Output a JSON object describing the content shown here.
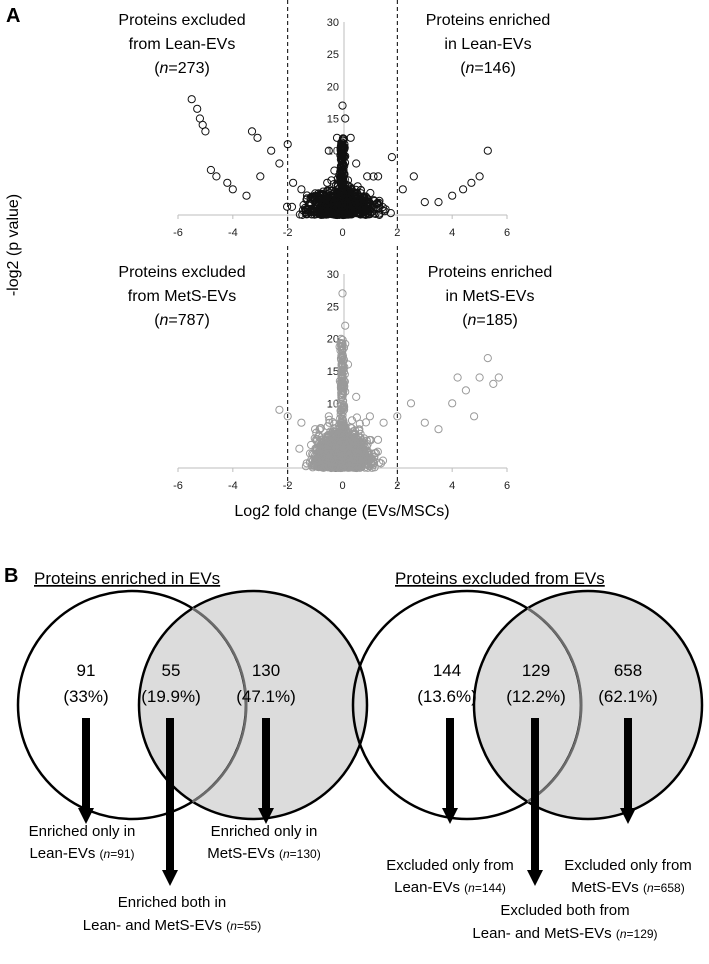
{
  "panel_a": {
    "letter": "A",
    "ylabel": "-log2 (p value)",
    "xlabel": "Log2 fold change (EVs/MSCs)",
    "top": {
      "left_annotation": [
        "Proteins excluded",
        "from Lean-EVs",
        "273"
      ],
      "right_annotation": [
        "Proteins enriched",
        "in Lean-EVs",
        "146"
      ]
    },
    "bottom": {
      "left_annotation": [
        "Proteins excluded",
        "from MetS-EVs",
        "787"
      ],
      "right_annotation": [
        "Proteins enriched",
        "in MetS-EVs",
        "185"
      ]
    },
    "n_prefix": "n",
    "n_eq": "=",
    "paren_open": "(",
    "paren_close": ")"
  },
  "panel_b": {
    "letter": "B",
    "left_venn": {
      "title": "Proteins enriched in EVs",
      "left_only": [
        "91",
        "(33%)"
      ],
      "both": [
        "55",
        "(19.9%)"
      ],
      "right_only": [
        "130",
        "(47.1%)"
      ],
      "cap_left": [
        "Enriched only in",
        "Lean-EVs ",
        "n",
        "=91)"
      ],
      "cap_right": [
        "Enriched only in",
        "MetS-EVs ",
        "n",
        "=130)"
      ],
      "cap_both": [
        "Enriched both in",
        "Lean- and MetS-EVs ",
        "n",
        "=55)"
      ]
    },
    "right_venn": {
      "title": "Proteins excluded from EVs",
      "left_only": [
        "144",
        "(13.6%)"
      ],
      "both": [
        "129",
        "(12.2%)"
      ],
      "right_only": [
        "658",
        "(62.1%)"
      ],
      "cap_left": [
        "Excluded only from",
        "Lean-EVs ",
        "n",
        "=144)"
      ],
      "cap_right": [
        "Excluded only from",
        "MetS-EVs ",
        "n",
        "=658)"
      ],
      "cap_both": [
        "Excluded both from",
        "Lean- and MetS-EVs ",
        "n",
        "=129)"
      ]
    }
  },
  "colors": {
    "lean_points": "#111111",
    "mets_points": "#9a9a9a",
    "mets_fill": "#dcdcdc",
    "axis": "#bdbdbd"
  },
  "chart_data": [
    {
      "type": "scatter",
      "series": [
        {
          "name": "Lean-EVs",
          "x": [
            -5.5,
            -5.3,
            -5.2,
            -5.1,
            -5.0,
            -4.8,
            -4.6,
            -4.2,
            -4.0,
            -3.5,
            -3.3,
            -3.1,
            -3.0,
            -2.6,
            -2.3,
            -2.0,
            -1.8,
            -1.5,
            -1.0,
            -0.5,
            -0.2,
            0.0,
            0.1,
            0.3,
            0.5,
            0.9,
            1.3,
            1.8,
            2.2,
            2.6,
            3.0,
            3.5,
            4.0,
            4.4,
            4.7,
            5.0,
            5.3
          ],
          "y": [
            18,
            16.5,
            15,
            14,
            13,
            7,
            6,
            5,
            4,
            3,
            13,
            12,
            6,
            10,
            8,
            11,
            5,
            4,
            3,
            10,
            12,
            17,
            15,
            12,
            8,
            6,
            6,
            9,
            4,
            6,
            2,
            2,
            3,
            4,
            5,
            6,
            10
          ]
        }
      ],
      "xlim": [
        -6,
        6
      ],
      "ylim": [
        0,
        30
      ],
      "xticks": [
        "-6",
        "-4",
        "-2",
        "0",
        "2",
        "4",
        "6"
      ],
      "yticks": [
        "0",
        "5",
        "10",
        "15",
        "20",
        "25",
        "30"
      ],
      "threshold_lines_x": [
        -2,
        2
      ]
    },
    {
      "type": "scatter",
      "series": [
        {
          "name": "MetS-EVs",
          "x": [
            -2.3,
            -2.0,
            -1.5,
            -1.0,
            -0.5,
            -0.2,
            0.0,
            0.1,
            0.2,
            0.5,
            1.0,
            1.5,
            2.0,
            2.5,
            3.0,
            3.5,
            4.0,
            4.2,
            4.5,
            4.8,
            5.0,
            5.3,
            5.5,
            5.7
          ],
          "y": [
            9,
            8,
            7,
            6,
            8,
            10,
            27,
            22,
            16,
            11,
            8,
            7,
            8,
            10,
            7,
            6,
            10,
            14,
            12,
            8,
            14,
            17,
            13,
            14
          ]
        }
      ],
      "xlim": [
        -6,
        6
      ],
      "ylim": [
        0,
        30
      ],
      "xticks": [
        "-6",
        "-4",
        "-2",
        "0",
        "2",
        "4",
        "6"
      ],
      "yticks": [
        "0",
        "5",
        "10",
        "15",
        "20",
        "25",
        "30"
      ],
      "threshold_lines_x": [
        -2,
        2
      ]
    }
  ]
}
